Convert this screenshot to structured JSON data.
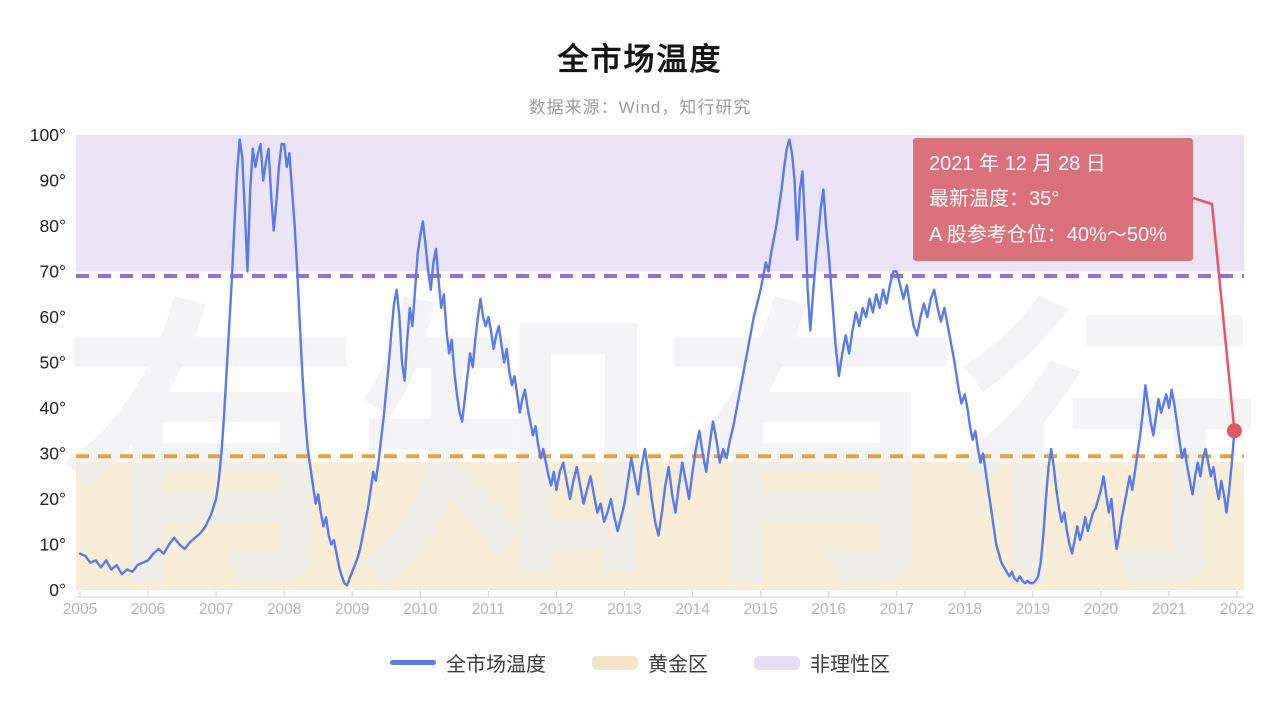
{
  "page": {
    "title": "全市场温度",
    "subtitle": "数据来源：Wind，知行研究"
  },
  "watermark": "有知有行",
  "annotation": {
    "date_line": "2021 年 12 月 28 日",
    "temp_line": "最新温度：35°",
    "position_line": "A 股参考仓位：40%～50%"
  },
  "legend": [
    {
      "label": "全市场温度",
      "type": "line",
      "color": "#5b7ae6"
    },
    {
      "label": "黄金区",
      "type": "band",
      "color": "#f3e5c6"
    },
    {
      "label": "非理性区",
      "type": "band",
      "color": "#e6dff3"
    }
  ],
  "chart_data": {
    "type": "line",
    "title": "全市场温度",
    "series_name": "全市场温度",
    "xlabel": "",
    "ylabel": "",
    "ylim": [
      0,
      100
    ],
    "grid": false,
    "legend_position": "bottom",
    "x_ticks": [
      2005,
      2006,
      2007,
      2008,
      2009,
      2010,
      2011,
      2012,
      2013,
      2014,
      2015,
      2016,
      2017,
      2018,
      2019,
      2020,
      2021,
      2022
    ],
    "y_ticks": [
      0,
      10,
      20,
      30,
      40,
      50,
      60,
      70,
      80,
      90,
      100
    ],
    "y_tick_suffix": "°",
    "zones": {
      "irrational": {
        "label": "非理性区",
        "band": [
          70,
          100
        ],
        "line": 69,
        "band_color": "#eae4f6",
        "line_color": "#9c6cd6"
      },
      "golden": {
        "label": "黄金区",
        "band": [
          0,
          28.2
        ],
        "line": 29.4,
        "band_color": "#f8eed8",
        "line_color": "#e3a33d"
      }
    },
    "colors": {
      "series": "#5b7ae6",
      "annotation_bg": "#db717b",
      "leader": "#e25767"
    },
    "temps_by_year": [
      {
        "year": 2005,
        "values": [
          8,
          7.5,
          6,
          6.5,
          5,
          6.5,
          4.5,
          5.5,
          3.5,
          4.5,
          4,
          5.5,
          6
        ]
      },
      {
        "year": 2006,
        "values": [
          6.5,
          8,
          9,
          8,
          10,
          11.5,
          10,
          9,
          10.5,
          11.5,
          12.5,
          14,
          16.5
        ]
      },
      {
        "year": 2007,
        "values": [
          20,
          24,
          30,
          38,
          48,
          58,
          68,
          80,
          92,
          99,
          95,
          83,
          70,
          88,
          97,
          93,
          96,
          98,
          90,
          94,
          97,
          87,
          79,
          85,
          93,
          98
        ]
      },
      {
        "year": 2008,
        "values": [
          98,
          93,
          96,
          88,
          80,
          70,
          58,
          47,
          38,
          31,
          27,
          23,
          19,
          21,
          17,
          14,
          16,
          12,
          10,
          11,
          8,
          5,
          3,
          1.5,
          1,
          2.5
        ]
      },
      {
        "year": 2009,
        "values": [
          4,
          5.5,
          7,
          9,
          12,
          15,
          18,
          22,
          26,
          24,
          28,
          33,
          38,
          44,
          50,
          57,
          63,
          66,
          60,
          50,
          46,
          55,
          62,
          58,
          66,
          74
        ]
      },
      {
        "year": 2010,
        "values": [
          78,
          81,
          76,
          70,
          66,
          72,
          75,
          68,
          62,
          65,
          57,
          52,
          55,
          48,
          43,
          39,
          37,
          42,
          47,
          52,
          49,
          55,
          60,
          64,
          60,
          58
        ]
      },
      {
        "year": 2011,
        "values": [
          60,
          57,
          53,
          56,
          58,
          54,
          50,
          53,
          48,
          45,
          47,
          43,
          39,
          42,
          44,
          40,
          37,
          34,
          36,
          32,
          29,
          31,
          28,
          25,
          23,
          26
        ]
      },
      {
        "year": 2012,
        "values": [
          22,
          26,
          28,
          24,
          20,
          24,
          27,
          23,
          19,
          22,
          25,
          21,
          17,
          19,
          15,
          17,
          20,
          16,
          13,
          16
        ]
      },
      {
        "year": 2013,
        "values": [
          19,
          24,
          29,
          25,
          21,
          27,
          31,
          26,
          20,
          15,
          12,
          17,
          23,
          27,
          21,
          17,
          23,
          28,
          24,
          20
        ]
      },
      {
        "year": 2014,
        "values": [
          26,
          31,
          35,
          30,
          26,
          32,
          37,
          33,
          28,
          31,
          29,
          33,
          36,
          40,
          44,
          48,
          52,
          56,
          60,
          63
        ]
      },
      {
        "year": 2015,
        "values": [
          66,
          69,
          72,
          70,
          74,
          77,
          80,
          84,
          88,
          93,
          97,
          99,
          96,
          90,
          77,
          88,
          92,
          80,
          66,
          57,
          65,
          72,
          78,
          84,
          88,
          80
        ]
      },
      {
        "year": 2016,
        "values": [
          74,
          64,
          54,
          47,
          52,
          56,
          52,
          57,
          61,
          58,
          62,
          60,
          64,
          61,
          65,
          62,
          66,
          63,
          67,
          70
        ]
      },
      {
        "year": 2017,
        "values": [
          70,
          67,
          64,
          67,
          62,
          58,
          56,
          60,
          63,
          60,
          64,
          66,
          62,
          59,
          62,
          58,
          54,
          50,
          45,
          41
        ]
      },
      {
        "year": 2018,
        "values": [
          43,
          40,
          36,
          33,
          35,
          31,
          28,
          30,
          26,
          22,
          18,
          14,
          10,
          8,
          6,
          5,
          4,
          3,
          4,
          2.5,
          2,
          3,
          2,
          1.5,
          2,
          1.5
        ]
      },
      {
        "year": 2019,
        "values": [
          1.5,
          2,
          3,
          6,
          12,
          20,
          27,
          31,
          27,
          22,
          18,
          15,
          17,
          13,
          10,
          8,
          11,
          14,
          11,
          13,
          16,
          13,
          15,
          17,
          18,
          20
        ]
      },
      {
        "year": 2020,
        "values": [
          22,
          25,
          21,
          17,
          20,
          14,
          9,
          12,
          16,
          19,
          22,
          25,
          22,
          26,
          30,
          34,
          39,
          45,
          41,
          37,
          34,
          38,
          42,
          39,
          41,
          43
        ]
      },
      {
        "year": 2021,
        "values": [
          40,
          44,
          41,
          37,
          33,
          29,
          31,
          27,
          24,
          21,
          25,
          28,
          25,
          29,
          31,
          28,
          25,
          27,
          23,
          20,
          24,
          21,
          17,
          22,
          28,
          35
        ]
      }
    ],
    "last_point": {
      "date": "2021-12-28",
      "value": 35,
      "label": "35°"
    }
  }
}
